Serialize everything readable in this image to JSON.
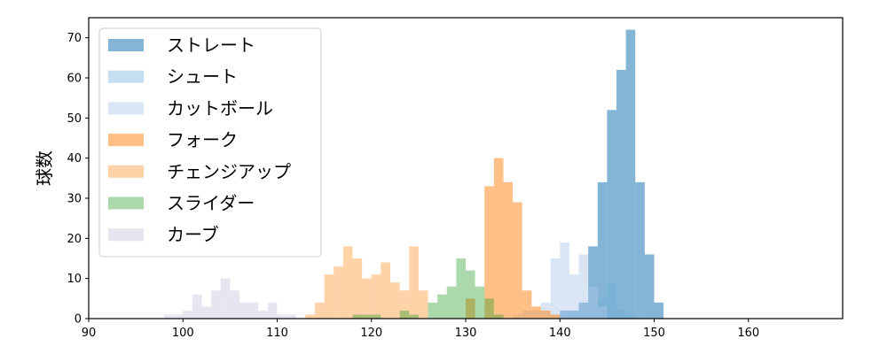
{
  "chart_data": {
    "type": "bar",
    "subtype": "overlapping-histogram",
    "title": "",
    "xlabel": "",
    "ylabel": "球数",
    "xlim": [
      90,
      170
    ],
    "ylim": [
      0,
      75
    ],
    "xticks": [
      90,
      100,
      110,
      120,
      130,
      140,
      150,
      160
    ],
    "yticks": [
      0,
      10,
      20,
      30,
      40,
      50,
      60,
      70
    ],
    "bin_width": 1,
    "grid": false,
    "legend_position": "top-left",
    "series": [
      {
        "name": "ストレート",
        "color": "#1f77b4",
        "opacity": 0.55,
        "bins": [
          [
            140,
            2
          ],
          [
            141,
            2
          ],
          [
            142,
            4
          ],
          [
            143,
            18
          ],
          [
            144,
            34
          ],
          [
            145,
            52
          ],
          [
            146,
            62
          ],
          [
            147,
            72
          ],
          [
            148,
            34
          ],
          [
            149,
            16
          ],
          [
            150,
            4
          ]
        ]
      },
      {
        "name": "シュート",
        "color": "#6baed6",
        "opacity": 0.4,
        "bins": [
          [
            141,
            1
          ],
          [
            142,
            2
          ],
          [
            143,
            3
          ],
          [
            144,
            5
          ],
          [
            145,
            9
          ],
          [
            146,
            2
          ],
          [
            147,
            1
          ]
        ]
      },
      {
        "name": "カットボール",
        "color": "#aec7e8",
        "opacity": 0.45,
        "bins": [
          [
            135,
            1
          ],
          [
            136,
            2
          ],
          [
            137,
            2
          ],
          [
            138,
            4
          ],
          [
            139,
            15
          ],
          [
            140,
            19
          ],
          [
            141,
            11
          ],
          [
            142,
            16
          ],
          [
            143,
            8
          ],
          [
            144,
            3
          ]
        ]
      },
      {
        "name": "フォーク",
        "color": "#ff7f0e",
        "opacity": 0.5,
        "bins": [
          [
            130,
            5
          ],
          [
            132,
            33
          ],
          [
            133,
            40
          ],
          [
            134,
            34
          ],
          [
            135,
            29
          ],
          [
            136,
            7
          ],
          [
            137,
            3
          ],
          [
            138,
            2
          ],
          [
            139,
            1
          ]
        ]
      },
      {
        "name": "チェンジアップ",
        "color": "#ffbb78",
        "opacity": 0.65,
        "bins": [
          [
            113,
            1
          ],
          [
            114,
            4
          ],
          [
            115,
            11
          ],
          [
            116,
            13
          ],
          [
            117,
            18
          ],
          [
            118,
            15
          ],
          [
            119,
            10
          ],
          [
            120,
            11
          ],
          [
            121,
            14
          ],
          [
            122,
            9
          ],
          [
            123,
            7
          ],
          [
            124,
            18
          ],
          [
            125,
            7
          ]
        ]
      },
      {
        "name": "スライダー",
        "color": "#2ca02c",
        "opacity": 0.4,
        "bins": [
          [
            118,
            1
          ],
          [
            119,
            1
          ],
          [
            120,
            1
          ],
          [
            123,
            2
          ],
          [
            124,
            1
          ],
          [
            126,
            4
          ],
          [
            127,
            6
          ],
          [
            128,
            8
          ],
          [
            129,
            15
          ],
          [
            130,
            12
          ],
          [
            131,
            8
          ],
          [
            132,
            5
          ],
          [
            133,
            1
          ]
        ]
      },
      {
        "name": "カーブ",
        "color": "#c7c7e0",
        "opacity": 0.45,
        "bins": [
          [
            98,
            1
          ],
          [
            99,
            1
          ],
          [
            100,
            2
          ],
          [
            101,
            6
          ],
          [
            102,
            3
          ],
          [
            103,
            7
          ],
          [
            104,
            10
          ],
          [
            105,
            7
          ],
          [
            106,
            4
          ],
          [
            107,
            4
          ],
          [
            108,
            2
          ],
          [
            109,
            4
          ],
          [
            110,
            1
          ],
          [
            111,
            1
          ]
        ]
      }
    ]
  }
}
